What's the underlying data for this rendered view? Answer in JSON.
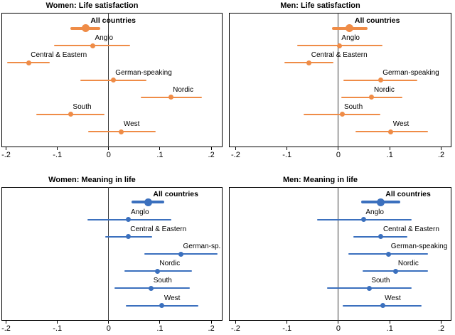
{
  "figure": {
    "background": "#ffffff",
    "border_color": "#000000",
    "zero_line_color": "#3a3a3a"
  },
  "chart_data": [
    {
      "type": "scatter",
      "subtype": "coefficient-plot-with-ci",
      "title": "Women: Life satisfaction",
      "color": "#EF8C47",
      "xlim": [
        -0.209,
        0.222
      ],
      "xticks": [
        -0.2,
        -0.1,
        0,
        0.1,
        0.2
      ],
      "xtick_labels": [
        "-.2",
        "-.1",
        "0",
        ".1",
        ".2"
      ],
      "grid": false,
      "points": [
        {
          "label": "All countries",
          "value": -0.045,
          "ci": [
            -0.074,
            -0.016
          ],
          "emphasis": true
        },
        {
          "label": "Anglo",
          "value": -0.031,
          "ci": [
            -0.106,
            0.042
          ],
          "emphasis": false
        },
        {
          "label": "Central & Eastern",
          "value": -0.156,
          "ci": [
            -0.198,
            -0.115
          ],
          "emphasis": false
        },
        {
          "label": "German-speaking",
          "value": 0.009,
          "ci": [
            -0.055,
            0.074
          ],
          "emphasis": false
        },
        {
          "label": "Nordic",
          "value": 0.121,
          "ci": [
            0.063,
            0.182
          ],
          "emphasis": false
        },
        {
          "label": "South",
          "value": -0.074,
          "ci": [
            -0.141,
            -0.008
          ],
          "emphasis": false
        },
        {
          "label": "West",
          "value": 0.025,
          "ci": [
            -0.04,
            0.092
          ],
          "emphasis": false
        }
      ]
    },
    {
      "type": "scatter",
      "subtype": "coefficient-plot-with-ci",
      "title": "Men: Life satisfaction",
      "color": "#EF8C47",
      "xlim": [
        -0.213,
        0.22
      ],
      "xticks": [
        -0.2,
        -0.1,
        0,
        0.1,
        0.2
      ],
      "xtick_labels": [
        "-.2",
        "-.1",
        "0",
        ".1",
        ".2"
      ],
      "grid": false,
      "points": [
        {
          "label": "All countries",
          "value": 0.022,
          "ci": [
            -0.013,
            0.057
          ],
          "emphasis": true
        },
        {
          "label": "Anglo",
          "value": 0.002,
          "ci": [
            -0.08,
            0.086
          ],
          "emphasis": false
        },
        {
          "label": "Central & Eastern",
          "value": -0.057,
          "ci": [
            -0.105,
            -0.009
          ],
          "emphasis": false
        },
        {
          "label": "German-speaking",
          "value": 0.082,
          "ci": [
            0.01,
            0.153
          ],
          "emphasis": false
        },
        {
          "label": "Nordic",
          "value": 0.065,
          "ci": [
            0.006,
            0.124
          ],
          "emphasis": false
        },
        {
          "label": "South",
          "value": 0.007,
          "ci": [
            -0.068,
            0.081
          ],
          "emphasis": false
        },
        {
          "label": "West",
          "value": 0.102,
          "ci": [
            0.033,
            0.174
          ],
          "emphasis": false
        }
      ]
    },
    {
      "type": "scatter",
      "subtype": "coefficient-plot-with-ci",
      "title": "Women: Meaning in life",
      "color": "#3B70BE",
      "xlim": [
        -0.209,
        0.222
      ],
      "xticks": [
        -0.2,
        -0.1,
        0,
        0.1,
        0.2
      ],
      "xtick_labels": [
        "-.2",
        "-.1",
        "0",
        ".1",
        ".2"
      ],
      "grid": false,
      "points": [
        {
          "label": "All countries",
          "value": 0.077,
          "ci": [
            0.045,
            0.108
          ],
          "emphasis": true
        },
        {
          "label": "Anglo",
          "value": 0.039,
          "ci": [
            -0.041,
            0.122
          ],
          "emphasis": false
        },
        {
          "label": "Central & Eastern",
          "value": 0.038,
          "ci": [
            -0.007,
            0.085
          ],
          "emphasis": false
        },
        {
          "label": "German-sp.",
          "value": 0.141,
          "ci": [
            0.07,
            0.213
          ],
          "emphasis": false
        },
        {
          "label": "Nordic",
          "value": 0.095,
          "ci": [
            0.031,
            0.162
          ],
          "emphasis": false
        },
        {
          "label": "South",
          "value": 0.083,
          "ci": [
            0.011,
            0.158
          ],
          "emphasis": false
        },
        {
          "label": "West",
          "value": 0.104,
          "ci": [
            0.033,
            0.175
          ],
          "emphasis": false
        }
      ]
    },
    {
      "type": "scatter",
      "subtype": "coefficient-plot-with-ci",
      "title": "Men: Meaning in life",
      "color": "#3B70BE",
      "xlim": [
        -0.213,
        0.22
      ],
      "xticks": [
        -0.2,
        -0.1,
        0,
        0.1,
        0.2
      ],
      "xtick_labels": [
        "-.2",
        "-.1",
        "0",
        ".1",
        ".2"
      ],
      "grid": false,
      "points": [
        {
          "label": "All countries",
          "value": 0.082,
          "ci": [
            0.045,
            0.12
          ],
          "emphasis": true
        },
        {
          "label": "Anglo",
          "value": 0.049,
          "ci": [
            -0.042,
            0.143
          ],
          "emphasis": false
        },
        {
          "label": "Central & Eastern",
          "value": 0.083,
          "ci": [
            0.029,
            0.134
          ],
          "emphasis": false
        },
        {
          "label": "German-speaking",
          "value": 0.098,
          "ci": [
            0.02,
            0.174
          ],
          "emphasis": false
        },
        {
          "label": "Nordic",
          "value": 0.112,
          "ci": [
            0.047,
            0.175
          ],
          "emphasis": false
        },
        {
          "label": "South",
          "value": 0.06,
          "ci": [
            -0.022,
            0.143
          ],
          "emphasis": false
        },
        {
          "label": "West",
          "value": 0.086,
          "ci": [
            0.009,
            0.162
          ],
          "emphasis": false
        }
      ]
    }
  ]
}
